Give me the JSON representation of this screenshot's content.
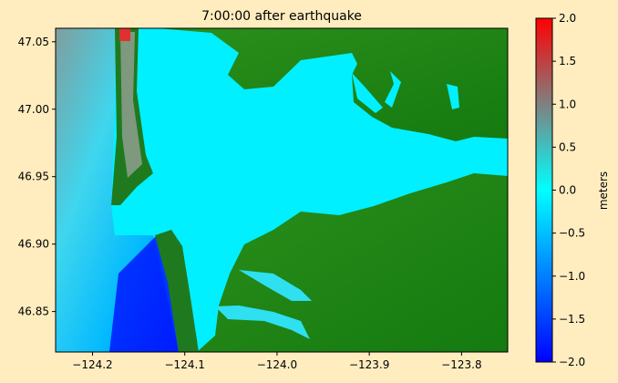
{
  "chart_data": {
    "type": "heatmap",
    "title": "7:00:00 after earthquake",
    "xlabel": "",
    "ylabel": "",
    "xlim": [
      -124.24,
      -123.75
    ],
    "ylim": [
      46.82,
      47.06
    ],
    "xticks": [
      -124.2,
      -124.1,
      -124.0,
      -123.9,
      -123.8
    ],
    "xtick_labels": [
      "−124.2",
      "−124.1",
      "−124.0",
      "−123.9",
      "−123.8"
    ],
    "yticks": [
      46.85,
      46.9,
      46.95,
      47.0,
      47.05
    ],
    "ytick_labels": [
      "46.85",
      "46.90",
      "46.95",
      "47.00",
      "47.05"
    ],
    "colorbar": {
      "label": "meters",
      "range": [
        -2.0,
        2.0
      ],
      "ticks": [
        -2.0,
        -1.5,
        -1.0,
        -0.5,
        0.0,
        0.5,
        1.0,
        1.5,
        2.0
      ],
      "tick_labels": [
        "−2.0",
        "−1.5",
        "−1.0",
        "−0.5",
        "0.0",
        "0.5",
        "1.0",
        "1.5",
        "2.0"
      ],
      "colormap": [
        "#0000ff",
        "#00ffff",
        "#808080",
        "#ff0000"
      ]
    },
    "land_color": "#1f8a1f",
    "grid": false
  }
}
